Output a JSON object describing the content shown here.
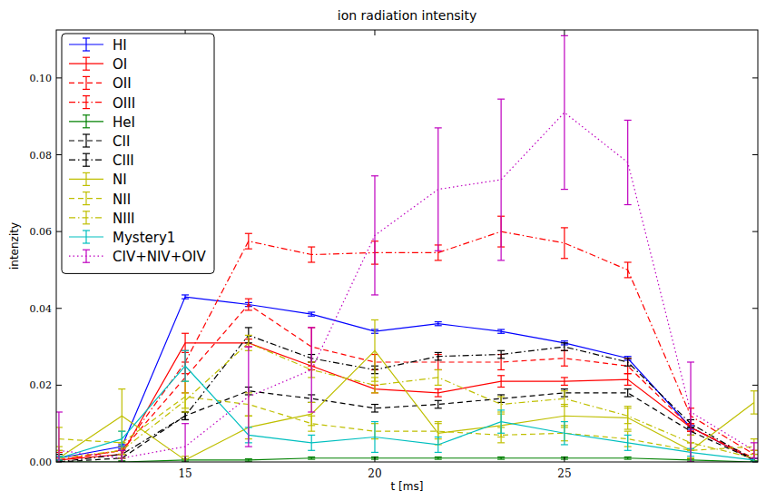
{
  "chart_data": {
    "type": "line",
    "title": "ion radiation intensity",
    "x_label": "t [ms]",
    "y_label": "intenzity",
    "x": [
      11.67,
      13.33,
      15,
      16.67,
      18.33,
      20,
      21.67,
      23.33,
      25,
      26.67,
      28.33,
      30
    ],
    "xlim": [
      11.6,
      30.1
    ],
    "xticks": [
      15,
      20,
      25
    ],
    "ylim": [
      0,
      0.1125
    ],
    "yticks": [
      {
        "value": 0,
        "label": "0.00"
      },
      {
        "value": 0.02,
        "label": "0.02"
      },
      {
        "value": 0.04,
        "label": "0.04"
      },
      {
        "value": 0.06,
        "label": "0.06"
      },
      {
        "value": 0.08,
        "label": "0.08"
      },
      {
        "value": 0.1,
        "label": "0.10"
      }
    ],
    "grid": false,
    "legend": "upper left",
    "series": [
      {
        "name": "HI",
        "color": "#0000ff",
        "line_style": "solid",
        "values": [
          0.001,
          0.004,
          0.043,
          0.041,
          0.0385,
          0.034,
          0.036,
          0.034,
          0.031,
          0.027,
          0.009,
          0.0005
        ],
        "errors": [
          0.0005,
          0.0005,
          0.0005,
          0.0005,
          0.0005,
          0.0005,
          0.0005,
          0.0005,
          0.0005,
          0.0005,
          0.0005,
          0.0005
        ]
      },
      {
        "name": "OI",
        "color": "#ff0000",
        "line_style": "solid",
        "values": [
          0.0005,
          0.002,
          0.031,
          0.031,
          0.025,
          0.019,
          0.018,
          0.021,
          0.021,
          0.0215,
          0.009,
          0.0005
        ],
        "errors": [
          0.0005,
          0.001,
          0.0025,
          0.001,
          0.001,
          0.001,
          0.001,
          0.0015,
          0.001,
          0.0015,
          0.001,
          0.0005
        ]
      },
      {
        "name": "OII",
        "color": "#ff0000",
        "line_style": "dashed",
        "values": [
          0.0005,
          0.003,
          0.022,
          0.041,
          0.03,
          0.026,
          0.026,
          0.026,
          0.027,
          0.025,
          0.009,
          0.001
        ],
        "errors": [
          0.002,
          0.001,
          0.004,
          0.0015,
          0.005,
          0.002,
          0.002,
          0.002,
          0.002,
          0.002,
          0.001,
          0.001
        ]
      },
      {
        "name": "OIII",
        "color": "#ff0000",
        "line_style": "dashdot",
        "values": [
          0.0005,
          0.003,
          0.026,
          0.0575,
          0.054,
          0.0545,
          0.0545,
          0.06,
          0.057,
          0.05,
          0.012,
          0.002
        ],
        "errors": [
          0.001,
          0.001,
          0.003,
          0.002,
          0.002,
          0.003,
          0.002,
          0.004,
          0.004,
          0.002,
          0.002,
          0.001
        ]
      },
      {
        "name": "HeI",
        "color": "#008000",
        "line_style": "solid",
        "values": [
          0,
          0,
          0.0005,
          0.0005,
          0.001,
          0.001,
          0.001,
          0.001,
          0.001,
          0.001,
          0.0005,
          0
        ],
        "errors": [
          0.0003,
          0.0003,
          0.0003,
          0.0003,
          0.0003,
          0.0003,
          0.0003,
          0.0003,
          0.0003,
          0.0003,
          0.0003,
          0.0003
        ]
      },
      {
        "name": "CII",
        "color": "#000000",
        "line_style": "dashed",
        "values": [
          0,
          0.001,
          0.012,
          0.0185,
          0.0165,
          0.014,
          0.015,
          0.0165,
          0.018,
          0.018,
          0.008,
          0.0005
        ],
        "errors": [
          0.0005,
          0.001,
          0.001,
          0.001,
          0.001,
          0.001,
          0.001,
          0.001,
          0.001,
          0.001,
          0.001,
          0.0005
        ]
      },
      {
        "name": "CIII",
        "color": "#000000",
        "line_style": "dashdot",
        "values": [
          0,
          0.002,
          0.012,
          0.033,
          0.027,
          0.024,
          0.0275,
          0.028,
          0.03,
          0.026,
          0.01,
          0.0005
        ],
        "errors": [
          0.002,
          0.001,
          0.001,
          0.002,
          0.001,
          0.001,
          0.001,
          0.001,
          0.001,
          0.001,
          0.001,
          0.0005
        ]
      },
      {
        "name": "NI",
        "color": "#bfbf00",
        "line_style": "solid",
        "values": [
          0.001,
          0.012,
          0.0005,
          0.009,
          0.0125,
          0.029,
          0.0075,
          0.0095,
          0.012,
          0.0115,
          0.003,
          0.0155
        ],
        "errors": [
          0.003,
          0.007,
          0.001,
          0.003,
          0.003,
          0.008,
          0.003,
          0.003,
          0.003,
          0.003,
          0.002,
          0.003
        ]
      },
      {
        "name": "NII",
        "color": "#bfbf00",
        "line_style": "dashed",
        "values": [
          0.006,
          0.005,
          0.017,
          0.015,
          0.01,
          0.008,
          0.008,
          0.007,
          0.0075,
          0.006,
          0.003,
          0.004
        ],
        "errors": [
          0.003,
          0.003,
          0.004,
          0.003,
          0.002,
          0.002,
          0.002,
          0.002,
          0.002,
          0.002,
          0.002,
          0.002
        ]
      },
      {
        "name": "NIII",
        "color": "#bfbf00",
        "line_style": "dashdot",
        "values": [
          0.001,
          0.003,
          0.016,
          0.031,
          0.024,
          0.02,
          0.022,
          0.015,
          0.0165,
          0.012,
          0.005,
          0.001
        ],
        "errors": [
          0.002,
          0.002,
          0.002,
          0.002,
          0.002,
          0.002,
          0.002,
          0.002,
          0.002,
          0.002,
          0.002,
          0.002
        ]
      },
      {
        "name": "Mystery1",
        "color": "#00bfbf",
        "line_style": "solid",
        "values": [
          0.001,
          0.006,
          0.025,
          0.007,
          0.005,
          0.0065,
          0.0045,
          0.0105,
          0.0075,
          0.005,
          0.0025,
          0.0005
        ],
        "errors": [
          0.0005,
          0.002,
          0.004,
          0.002,
          0.002,
          0.004,
          0.002,
          0.003,
          0.003,
          0.002,
          0.001,
          0.0005
        ]
      },
      {
        "name": "CIV+NIV+OIV",
        "color": "#bf00bf",
        "line_style": "dotted",
        "values": [
          0.003,
          0.001,
          0.004,
          0.017,
          0.024,
          0.059,
          0.071,
          0.0735,
          0.091,
          0.078,
          0.013,
          0.003
        ],
        "errors": [
          0.01,
          0.002,
          0.006,
          0.013,
          0.011,
          0.0155,
          0.016,
          0.021,
          0.02,
          0.011,
          0.013,
          0.002
        ]
      }
    ]
  }
}
